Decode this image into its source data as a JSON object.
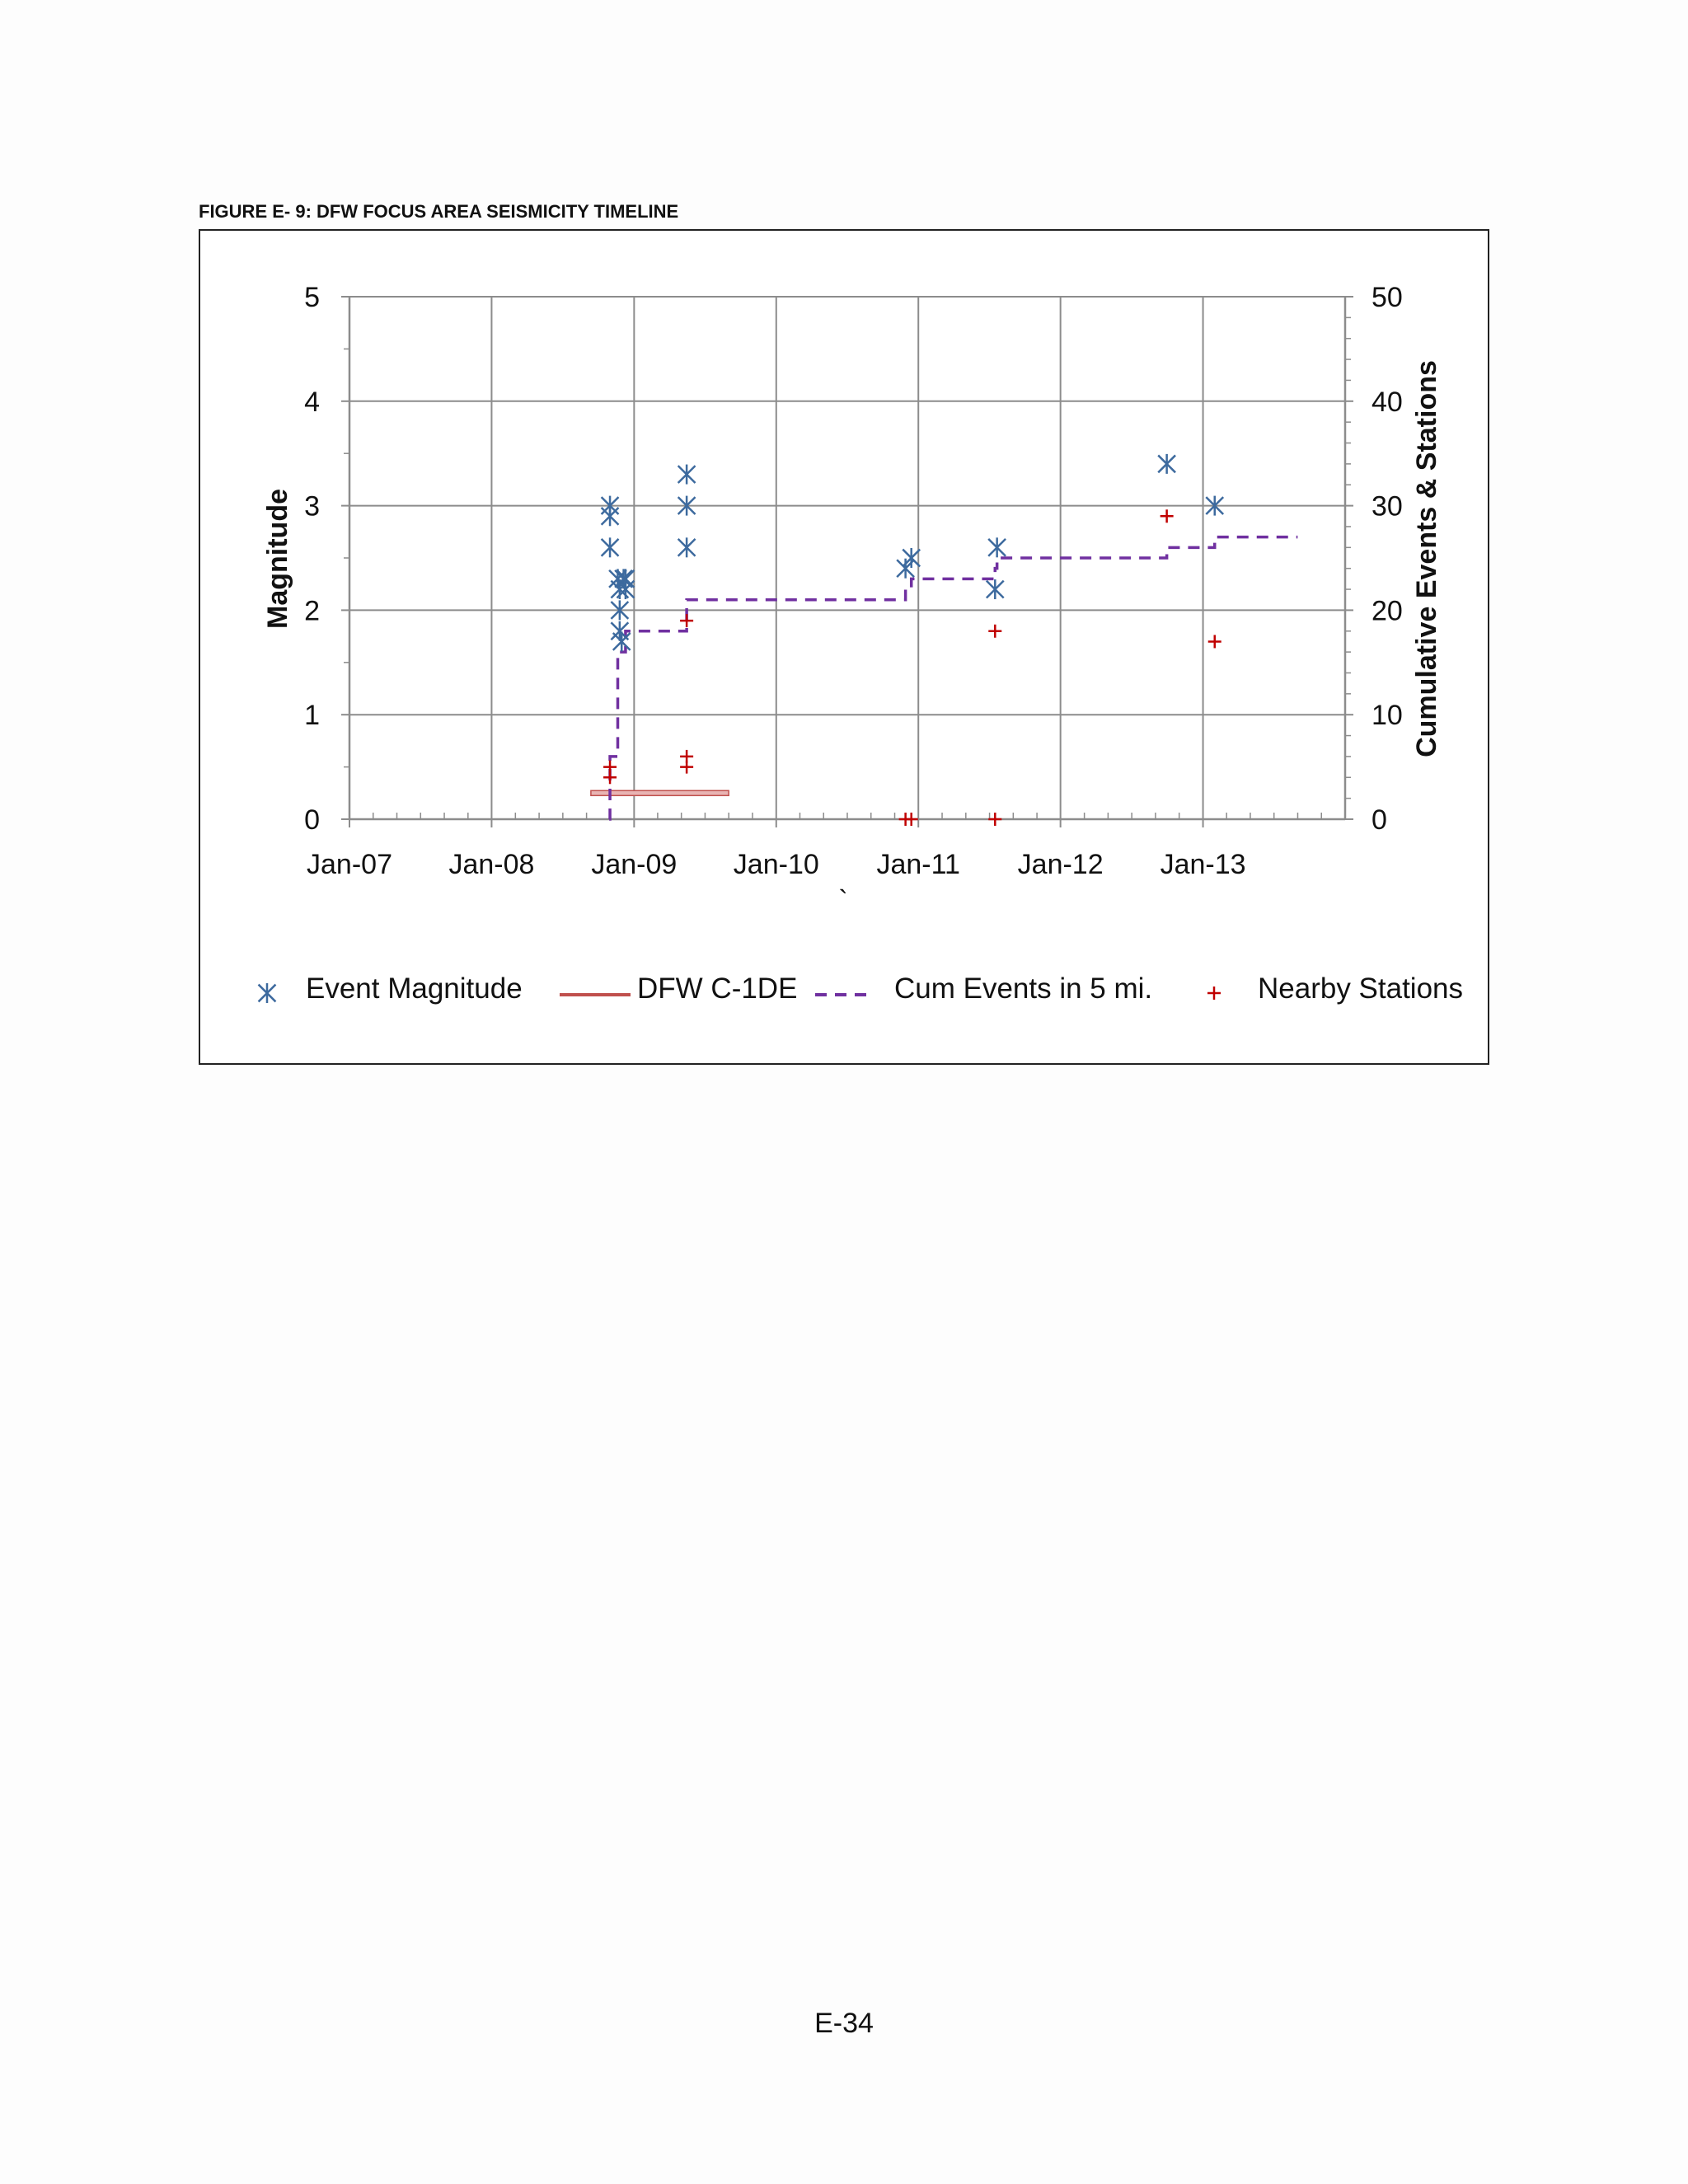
{
  "figure": {
    "caption": "FIGURE E- 9: DFW FOCUS AREA SEISMICITY TIMELINE"
  },
  "page": {
    "number": "E-34"
  },
  "chart_data": {
    "type": "scatter",
    "title": "",
    "ylabel": "Magnitude",
    "y2label": "Cumulative Events & Stations",
    "xlabel": "",
    "stray_mark": "`",
    "x_ticks": [
      "Jan-07",
      "Jan-08",
      "Jan-09",
      "Jan-10",
      "Jan-11",
      "Jan-12",
      "Jan-13"
    ],
    "x_range": [
      "2007-01-01",
      "2014-01-01"
    ],
    "ylim": [
      0,
      5
    ],
    "y_ticks": [
      "0",
      "1",
      "2",
      "3",
      "4",
      "5"
    ],
    "y2lim": [
      0,
      50
    ],
    "y2_ticks": [
      "0",
      "10",
      "20",
      "30",
      "40",
      "50"
    ],
    "grid": true,
    "legend_position": "bottom",
    "colors": {
      "event_magnitude": "#3d6a9e",
      "well": "#c0504d",
      "cumulative": "#7030a0",
      "stations": "#c00000",
      "grid": "#8c8c8c"
    },
    "series": [
      {
        "name": "Event Magnitude",
        "axis": "left",
        "marker": "asterisk",
        "points": [
          {
            "date": "2008-10-31",
            "value": 3.0
          },
          {
            "date": "2008-10-31",
            "value": 2.9
          },
          {
            "date": "2008-10-31",
            "value": 2.6
          },
          {
            "date": "2008-11-20",
            "value": 2.3
          },
          {
            "date": "2008-11-25",
            "value": 2.2
          },
          {
            "date": "2008-11-25",
            "value": 2.0
          },
          {
            "date": "2008-11-25",
            "value": 1.8
          },
          {
            "date": "2008-11-30",
            "value": 1.7
          },
          {
            "date": "2008-12-05",
            "value": 2.3
          },
          {
            "date": "2008-12-10",
            "value": 2.3
          },
          {
            "date": "2008-12-10",
            "value": 2.2
          },
          {
            "date": "2009-05-16",
            "value": 3.3
          },
          {
            "date": "2009-05-16",
            "value": 3.0
          },
          {
            "date": "2009-05-16",
            "value": 2.6
          },
          {
            "date": "2010-11-29",
            "value": 2.4
          },
          {
            "date": "2010-12-14",
            "value": 2.5
          },
          {
            "date": "2011-07-22",
            "value": 2.6
          },
          {
            "date": "2011-07-17",
            "value": 2.2
          },
          {
            "date": "2012-09-30",
            "value": 3.4
          },
          {
            "date": "2013-01-31",
            "value": 3.0
          }
        ]
      },
      {
        "name": "DFW C-1DE",
        "axis": "left",
        "marker": "bar",
        "start": "2008-09-12",
        "end": "2009-09-01",
        "value": 0.25
      },
      {
        "name": "Cum Events in 5 mi.",
        "axis": "right",
        "marker": "dashed-step",
        "steps": [
          {
            "date": "2008-10-29",
            "value": 0
          },
          {
            "date": "2008-10-31",
            "value": 6
          },
          {
            "date": "2008-11-20",
            "value": 16
          },
          {
            "date": "2008-12-10",
            "value": 18
          },
          {
            "date": "2009-05-16",
            "value": 21
          },
          {
            "date": "2010-11-29",
            "value": 22
          },
          {
            "date": "2010-12-14",
            "value": 23
          },
          {
            "date": "2011-07-17",
            "value": 24
          },
          {
            "date": "2011-07-22",
            "value": 25
          },
          {
            "date": "2012-09-30",
            "value": 26
          },
          {
            "date": "2013-01-31",
            "value": 27
          },
          {
            "date": "2013-09-01",
            "value": 27
          }
        ]
      },
      {
        "name": "Nearby Stations",
        "axis": "right",
        "marker": "plus",
        "points": [
          {
            "date": "2008-10-31",
            "value": 5
          },
          {
            "date": "2008-10-31",
            "value": 4
          },
          {
            "date": "2009-05-16",
            "value": 6
          },
          {
            "date": "2009-05-16",
            "value": 5
          },
          {
            "date": "2009-05-16",
            "value": 19
          },
          {
            "date": "2010-11-29",
            "value": 0
          },
          {
            "date": "2010-12-14",
            "value": 0
          },
          {
            "date": "2011-07-17",
            "value": 18
          },
          {
            "date": "2011-07-17",
            "value": 0
          },
          {
            "date": "2012-09-30",
            "value": 29
          },
          {
            "date": "2013-01-31",
            "value": 17
          }
        ]
      }
    ]
  }
}
